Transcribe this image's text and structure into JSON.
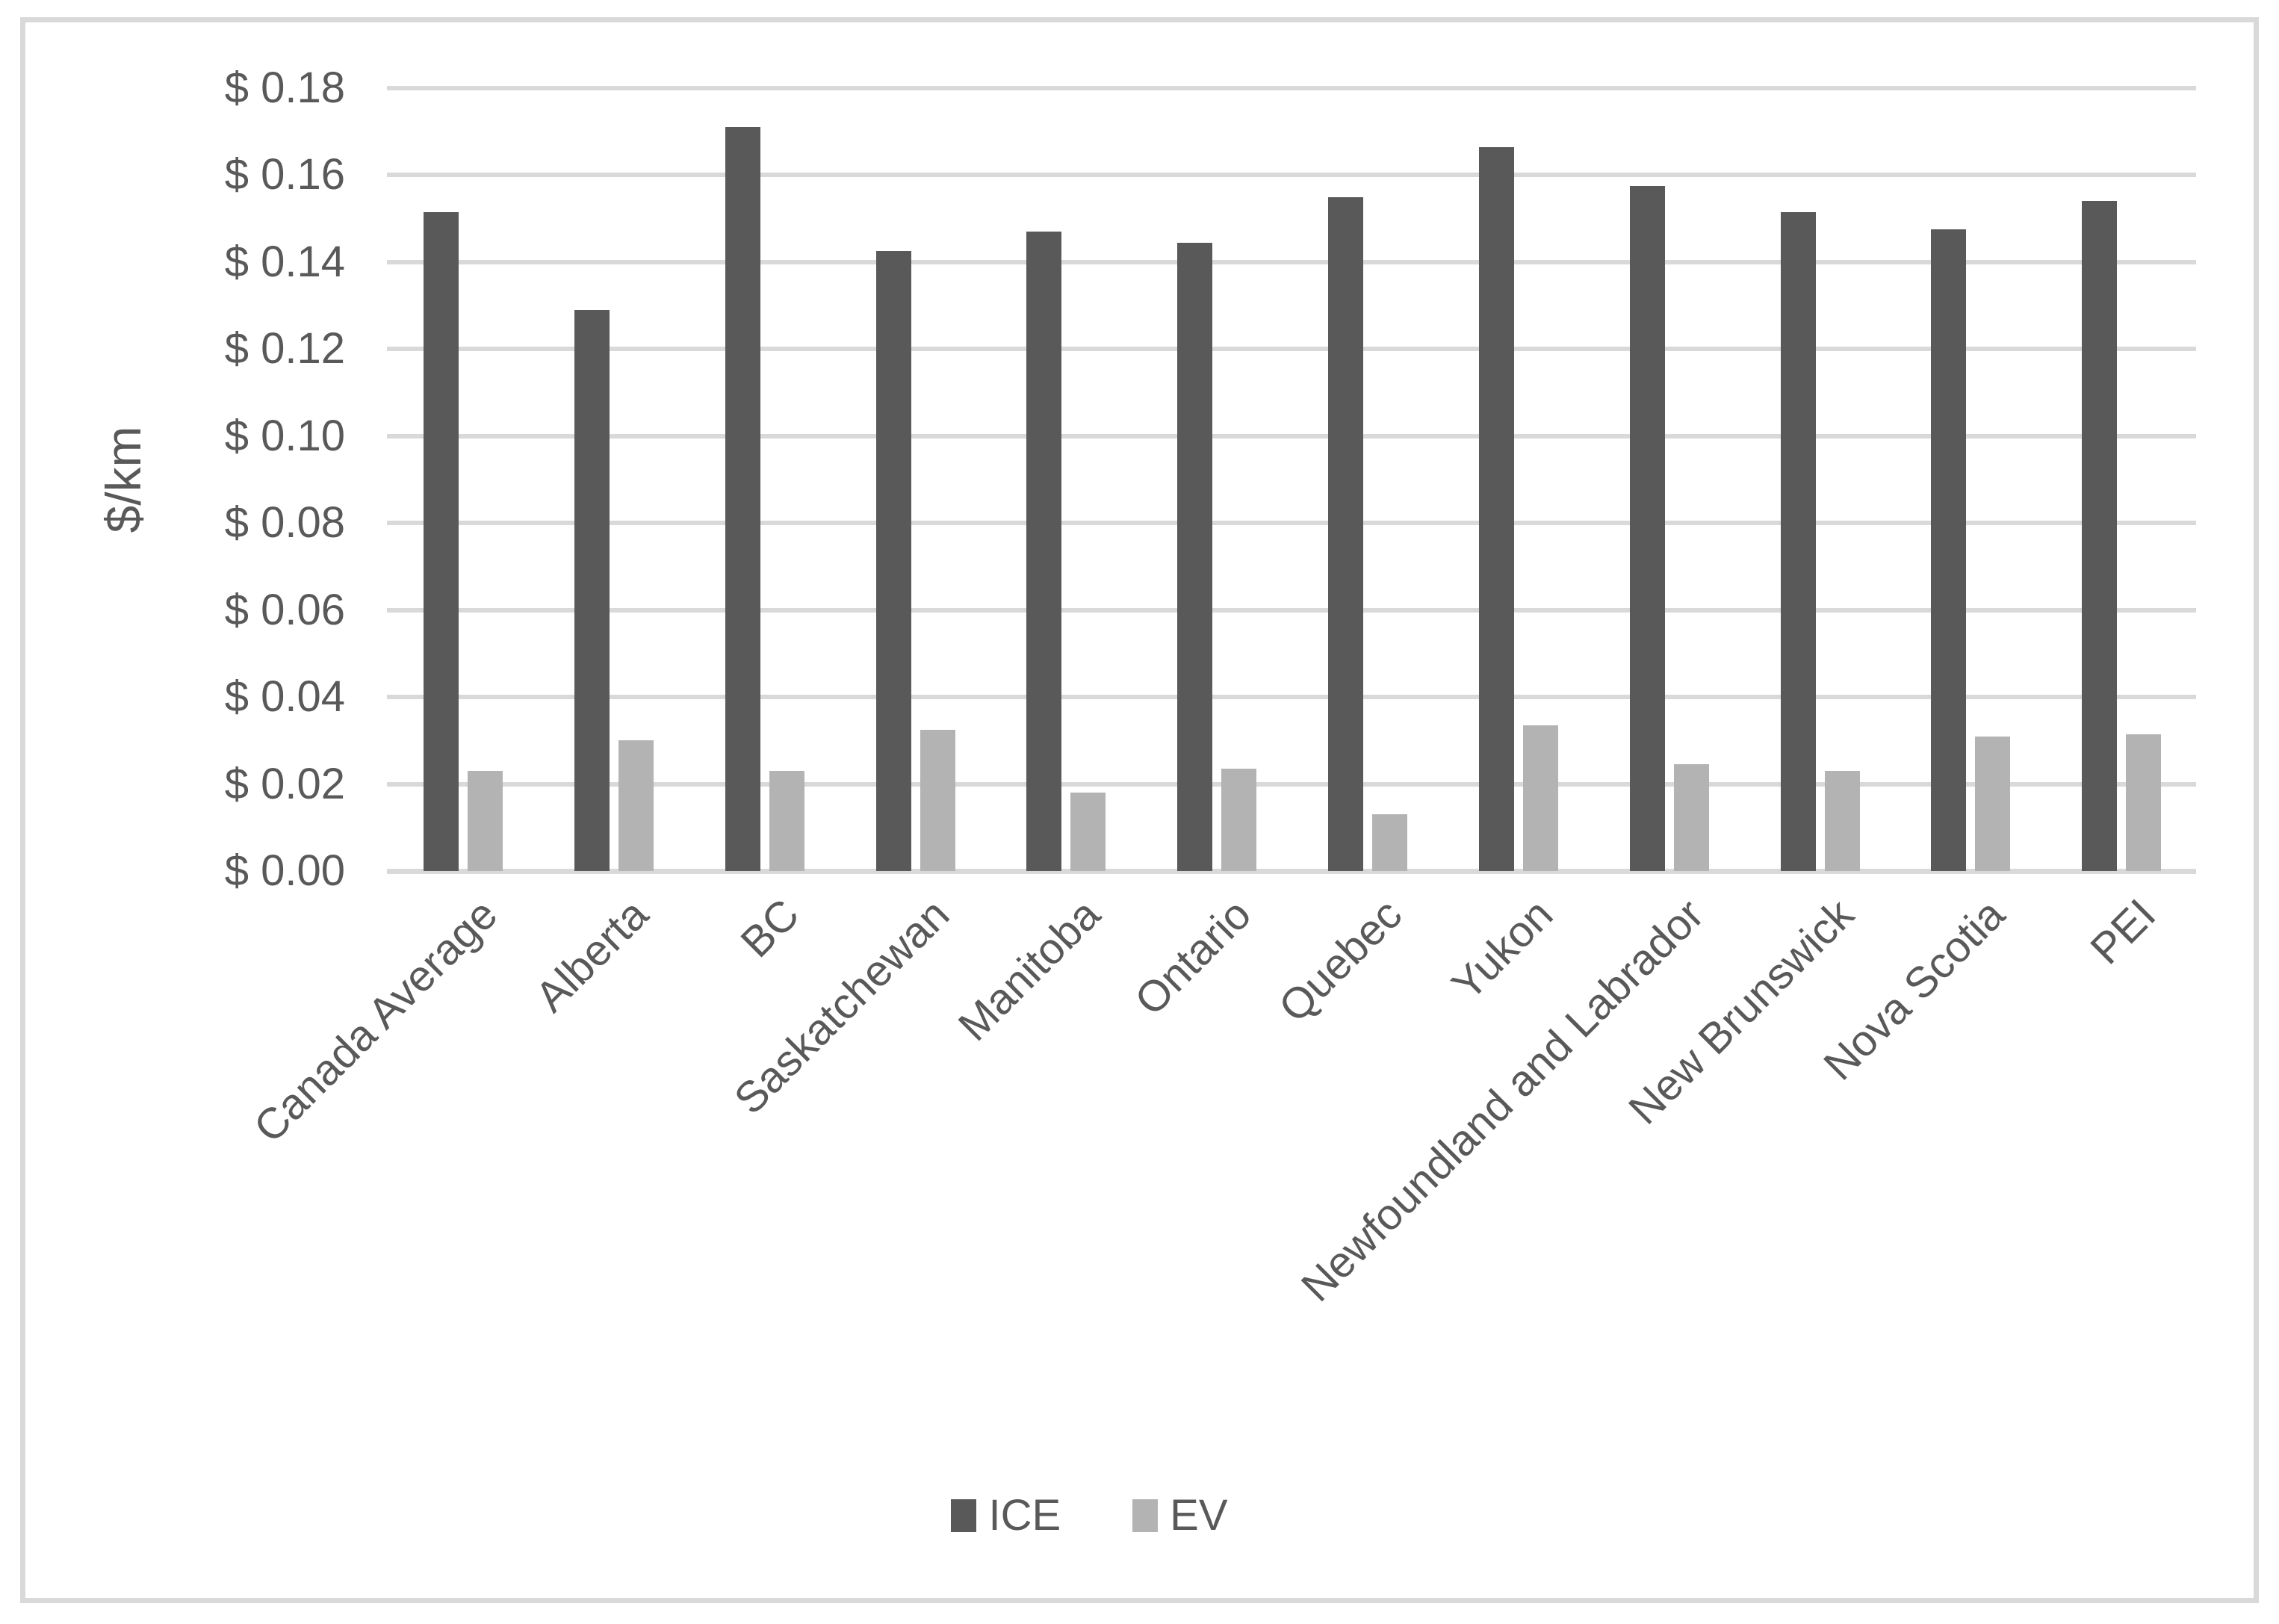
{
  "chart_data": {
    "type": "bar",
    "title": "",
    "categories": [
      "Canada Average",
      "Alberta",
      "BC",
      "Saskatchewan",
      "Manitoba",
      "Ontario",
      "Quebec",
      "Yukon",
      "Newfoundland and Labrador",
      "New Brunswick",
      "Nova Scotia",
      "PEI"
    ],
    "series": [
      {
        "name": "ICE",
        "color": "#595959",
        "values": [
          0.1515,
          0.129,
          0.171,
          0.1425,
          0.147,
          0.1445,
          0.155,
          0.1665,
          0.1575,
          0.1515,
          0.1475,
          0.154
        ]
      },
      {
        "name": "EV",
        "color": "#b3b3b3",
        "values": [
          0.023,
          0.03,
          0.023,
          0.0325,
          0.018,
          0.0235,
          0.013,
          0.0335,
          0.0245,
          0.023,
          0.031,
          0.0315
        ]
      }
    ],
    "xlabel": "",
    "ylabel": "$/km",
    "ylim": [
      0,
      0.18
    ],
    "ytick_step": 0.02,
    "ytick_labels": [
      "$ 0.00",
      "$ 0.02",
      "$ 0.04",
      "$ 0.06",
      "$ 0.08",
      "$ 0.10",
      "$ 0.12",
      "$ 0.14",
      "$ 0.16",
      "$ 0.18"
    ],
    "grid": true,
    "legend_position": "bottom-center",
    "colors": {
      "gridline": "#d9d9d9",
      "axis_line": "#d9d9d9",
      "frame_border": "#d9d9d9",
      "text": "#595959",
      "background": "#ffffff"
    }
  }
}
